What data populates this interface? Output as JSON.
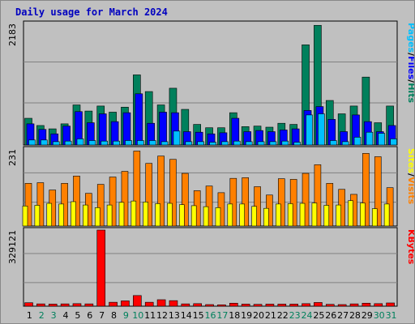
{
  "title": "Daily usage for March 2024",
  "colors": {
    "background": "#c0c0c0",
    "plot_bg": "#c0c0c0",
    "hits": "#00805c",
    "files": "#0000ff",
    "pages": "#00c0ff",
    "visits": "#ff8000",
    "sites": "#ffff00",
    "kbytes": "#ff0000",
    "day_weekday": "#000000",
    "day_weekend": "#00805c"
  },
  "chart_data": [
    {
      "type": "bar",
      "name": "hits-files-pages",
      "ymax_label": "2183",
      "ylim": [
        0,
        2183
      ],
      "legend": [
        {
          "key": "pages",
          "label": "Pages"
        },
        {
          "key": "sep1",
          "label": "/"
        },
        {
          "key": "files",
          "label": "Files"
        },
        {
          "key": "sep2",
          "label": "/"
        },
        {
          "key": "hits",
          "label": "Hits"
        }
      ],
      "categories": [
        "1",
        "2",
        "3",
        "4",
        "5",
        "6",
        "7",
        "8",
        "9",
        "10",
        "11",
        "12",
        "13",
        "14",
        "15",
        "16",
        "17",
        "18",
        "19",
        "20",
        "21",
        "22",
        "23",
        "24",
        "25",
        "26",
        "27",
        "28",
        "29",
        "30",
        "31"
      ],
      "series": [
        {
          "name": "Hits",
          "key": "hits",
          "values": [
            480,
            350,
            290,
            380,
            720,
            610,
            700,
            590,
            680,
            1260,
            960,
            720,
            1020,
            640,
            370,
            310,
            310,
            580,
            330,
            340,
            320,
            390,
            370,
            1800,
            2150,
            800,
            560,
            700,
            1220,
            400,
            700
          ]
        },
        {
          "name": "Files",
          "key": "files",
          "values": [
            380,
            280,
            200,
            340,
            600,
            400,
            560,
            420,
            580,
            920,
            390,
            590,
            580,
            240,
            230,
            200,
            220,
            480,
            240,
            260,
            240,
            270,
            290,
            620,
            690,
            460,
            240,
            540,
            420,
            240,
            350
          ]
        },
        {
          "name": "Pages",
          "key": "pages",
          "values": [
            90,
            90,
            60,
            70,
            110,
            80,
            70,
            70,
            80,
            80,
            80,
            60,
            250,
            60,
            60,
            50,
            60,
            70,
            60,
            60,
            60,
            70,
            50,
            540,
            560,
            80,
            60,
            140,
            230,
            210,
            110
          ]
        }
      ]
    },
    {
      "type": "bar",
      "name": "visits-sites",
      "ymax_label": "231",
      "ylim": [
        0,
        231
      ],
      "legend": [
        {
          "key": "sites",
          "label": "Sites"
        },
        {
          "key": "sep1",
          "label": "/"
        },
        {
          "key": "visits",
          "label": "Visits"
        }
      ],
      "categories": [
        "1",
        "2",
        "3",
        "4",
        "5",
        "6",
        "7",
        "8",
        "9",
        "10",
        "11",
        "12",
        "13",
        "14",
        "15",
        "16",
        "17",
        "18",
        "19",
        "20",
        "21",
        "22",
        "23",
        "24",
        "25",
        "26",
        "27",
        "28",
        "29",
        "30",
        "31"
      ],
      "series": [
        {
          "name": "Visits",
          "key": "visits",
          "values": [
            128,
            130,
            108,
            128,
            150,
            98,
            125,
            147,
            164,
            225,
            188,
            210,
            200,
            158,
            106,
            120,
            100,
            143,
            145,
            118,
            93,
            142,
            140,
            158,
            184,
            128,
            110,
            95,
            218,
            208,
            115
          ]
        },
        {
          "name": "Sites",
          "key": "sites",
          "values": [
            60,
            62,
            68,
            66,
            73,
            63,
            55,
            63,
            71,
            75,
            72,
            67,
            68,
            64,
            61,
            58,
            55,
            66,
            66,
            59,
            53,
            66,
            67,
            68,
            69,
            62,
            63,
            76,
            69,
            52,
            66
          ]
        }
      ]
    },
    {
      "type": "bar",
      "name": "kbytes",
      "ymax_label": "329121",
      "ylim": [
        0,
        329121
      ],
      "legend": [
        {
          "key": "kbytes",
          "label": "KBytes"
        }
      ],
      "categories": [
        "1",
        "2",
        "3",
        "4",
        "5",
        "6",
        "7",
        "8",
        "9",
        "10",
        "11",
        "12",
        "13",
        "14",
        "15",
        "16",
        "17",
        "18",
        "19",
        "20",
        "21",
        "22",
        "23",
        "24",
        "25",
        "26",
        "27",
        "28",
        "29",
        "30",
        "31"
      ],
      "series": [
        {
          "name": "KBytes",
          "key": "kbytes",
          "values": [
            15000,
            10000,
            9000,
            10000,
            11000,
            10000,
            329121,
            17000,
            23000,
            46000,
            17000,
            28000,
            24000,
            10000,
            11000,
            7000,
            6000,
            13000,
            9000,
            8000,
            9000,
            9000,
            9000,
            11000,
            16000,
            8000,
            7000,
            10000,
            13000,
            11000,
            14000
          ]
        }
      ]
    }
  ],
  "days": [
    "1",
    "2",
    "3",
    "4",
    "5",
    "6",
    "7",
    "8",
    "9",
    "10",
    "11",
    "12",
    "13",
    "14",
    "15",
    "16",
    "17",
    "18",
    "19",
    "20",
    "21",
    "22",
    "23",
    "24",
    "25",
    "26",
    "27",
    "28",
    "29",
    "30",
    "31"
  ],
  "weekend_days": [
    "2",
    "3",
    "9",
    "10",
    "16",
    "17",
    "23",
    "24",
    "30",
    "31"
  ]
}
